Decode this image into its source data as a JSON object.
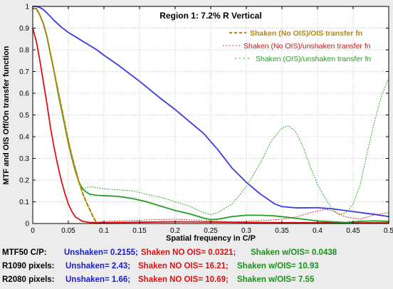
{
  "chart_data": {
    "type": "line",
    "title": "Region 1: 7.2% R Vertical",
    "xlabel": "Spatial frequency in C/P",
    "ylabel": "MTF and OIS Off/On transfer function",
    "xlim": [
      0,
      0.5
    ],
    "ylim": [
      0,
      1
    ],
    "x_ticks": [
      "0",
      "0.05",
      "0.1",
      "0.15",
      "0.2",
      "0.25",
      "0.3",
      "0.35",
      "0.4",
      "0.45",
      "0.5"
    ],
    "y_ticks": [
      "0",
      "0.1",
      "0.2",
      "0.3",
      "0.4",
      "0.5",
      "0.6",
      "0.7",
      "0.8",
      "0.9",
      "1"
    ],
    "grid": true,
    "legend_position": "top-right",
    "legend": [
      "Shaken (No OIS)/OIS transfer fn",
      "Shaken (No OIS)/unshaken transfer fn",
      "Shaken (OIS)/unshaken transfer fn"
    ],
    "series": [
      {
        "color": "#3a3ae6",
        "style": "solid",
        "width": 1.8,
        "points": [
          [
            0,
            1.0
          ],
          [
            0.005,
            1.0
          ],
          [
            0.01,
            0.995
          ],
          [
            0.015,
            0.985
          ],
          [
            0.02,
            0.97
          ],
          [
            0.03,
            0.935
          ],
          [
            0.04,
            0.905
          ],
          [
            0.05,
            0.88
          ],
          [
            0.06,
            0.86
          ],
          [
            0.07,
            0.84
          ],
          [
            0.08,
            0.82
          ],
          [
            0.09,
            0.8
          ],
          [
            0.1,
            0.775
          ],
          [
            0.12,
            0.73
          ],
          [
            0.15,
            0.655
          ],
          [
            0.18,
            0.575
          ],
          [
            0.2,
            0.525
          ],
          [
            0.22,
            0.47
          ],
          [
            0.24,
            0.415
          ],
          [
            0.26,
            0.34
          ],
          [
            0.28,
            0.255
          ],
          [
            0.3,
            0.19
          ],
          [
            0.32,
            0.135
          ],
          [
            0.34,
            0.09
          ],
          [
            0.35,
            0.078
          ],
          [
            0.37,
            0.072
          ],
          [
            0.4,
            0.073
          ],
          [
            0.42,
            0.068
          ],
          [
            0.45,
            0.055
          ],
          [
            0.48,
            0.042
          ],
          [
            0.5,
            0.032
          ]
        ]
      },
      {
        "color": "#e01010",
        "style": "solid",
        "width": 1.8,
        "points": [
          [
            0,
            0.9
          ],
          [
            0.005,
            0.84
          ],
          [
            0.01,
            0.75
          ],
          [
            0.015,
            0.65
          ],
          [
            0.02,
            0.55
          ],
          [
            0.025,
            0.44
          ],
          [
            0.03,
            0.35
          ],
          [
            0.035,
            0.27
          ],
          [
            0.04,
            0.2
          ],
          [
            0.045,
            0.14
          ],
          [
            0.05,
            0.09
          ],
          [
            0.055,
            0.055
          ],
          [
            0.06,
            0.03
          ],
          [
            0.07,
            0.01
          ],
          [
            0.08,
            0.005
          ],
          [
            0.1,
            0.004
          ],
          [
            0.15,
            0.006
          ],
          [
            0.2,
            0.008
          ],
          [
            0.25,
            0.007
          ],
          [
            0.3,
            0.005
          ],
          [
            0.35,
            0.004
          ],
          [
            0.4,
            0.004
          ],
          [
            0.45,
            0.003
          ],
          [
            0.5,
            0.003
          ]
        ]
      },
      {
        "color": "#20a020",
        "style": "solid",
        "width": 1.8,
        "points": [
          [
            0,
            0.99
          ],
          [
            0.005,
            0.99
          ],
          [
            0.01,
            0.96
          ],
          [
            0.015,
            0.92
          ],
          [
            0.02,
            0.86
          ],
          [
            0.025,
            0.78
          ],
          [
            0.03,
            0.7
          ],
          [
            0.035,
            0.61
          ],
          [
            0.04,
            0.53
          ],
          [
            0.045,
            0.45
          ],
          [
            0.05,
            0.37
          ],
          [
            0.055,
            0.3
          ],
          [
            0.06,
            0.24
          ],
          [
            0.065,
            0.19
          ],
          [
            0.07,
            0.16
          ],
          [
            0.075,
            0.145
          ],
          [
            0.08,
            0.135
          ],
          [
            0.09,
            0.13
          ],
          [
            0.1,
            0.128
          ],
          [
            0.12,
            0.125
          ],
          [
            0.14,
            0.115
          ],
          [
            0.16,
            0.1
          ],
          [
            0.18,
            0.08
          ],
          [
            0.2,
            0.06
          ],
          [
            0.22,
            0.045
          ],
          [
            0.24,
            0.025
          ],
          [
            0.25,
            0.018
          ],
          [
            0.26,
            0.02
          ],
          [
            0.28,
            0.032
          ],
          [
            0.3,
            0.038
          ],
          [
            0.32,
            0.038
          ],
          [
            0.34,
            0.035
          ],
          [
            0.36,
            0.028
          ],
          [
            0.38,
            0.02
          ],
          [
            0.4,
            0.012
          ],
          [
            0.42,
            0.008
          ],
          [
            0.44,
            0.005
          ],
          [
            0.46,
            0.01
          ],
          [
            0.48,
            0.012
          ],
          [
            0.5,
            0.01
          ]
        ]
      },
      {
        "color": "#b8860b",
        "style": "dash",
        "width": 2.2,
        "points": [
          [
            0,
            0.99
          ],
          [
            0.005,
            0.99
          ],
          [
            0.01,
            0.96
          ],
          [
            0.015,
            0.92
          ],
          [
            0.02,
            0.86
          ],
          [
            0.025,
            0.78
          ],
          [
            0.03,
            0.7
          ],
          [
            0.035,
            0.62
          ],
          [
            0.04,
            0.54
          ],
          [
            0.045,
            0.46
          ],
          [
            0.05,
            0.38
          ],
          [
            0.055,
            0.31
          ],
          [
            0.06,
            0.25
          ],
          [
            0.065,
            0.19
          ],
          [
            0.07,
            0.14
          ],
          [
            0.075,
            0.1
          ],
          [
            0.08,
            0.065
          ],
          [
            0.085,
            0.03
          ],
          [
            0.09,
            0.0
          ]
        ]
      },
      {
        "color": "#e01010",
        "style": "dot",
        "width": 1.0,
        "points": [
          [
            0.09,
            0.005
          ],
          [
            0.1,
            0.01
          ],
          [
            0.15,
            0.015
          ],
          [
            0.2,
            0.02
          ],
          [
            0.25,
            0.012
          ],
          [
            0.28,
            0.008
          ],
          [
            0.3,
            0.01
          ],
          [
            0.33,
            0.015
          ],
          [
            0.35,
            0.02
          ],
          [
            0.37,
            0.03
          ],
          [
            0.39,
            0.05
          ],
          [
            0.41,
            0.065
          ],
          [
            0.42,
            0.06
          ],
          [
            0.44,
            0.03
          ],
          [
            0.46,
            0.02
          ],
          [
            0.48,
            0.04
          ],
          [
            0.5,
            0.05
          ]
        ]
      },
      {
        "color": "#20a020",
        "style": "dot",
        "width": 1.0,
        "points": [
          [
            0.07,
            0.16
          ],
          [
            0.08,
            0.17
          ],
          [
            0.1,
            0.16
          ],
          [
            0.12,
            0.155
          ],
          [
            0.14,
            0.15
          ],
          [
            0.16,
            0.135
          ],
          [
            0.18,
            0.12
          ],
          [
            0.2,
            0.1
          ],
          [
            0.22,
            0.08
          ],
          [
            0.24,
            0.05
          ],
          [
            0.25,
            0.04
          ],
          [
            0.26,
            0.05
          ],
          [
            0.28,
            0.09
          ],
          [
            0.3,
            0.17
          ],
          [
            0.32,
            0.28
          ],
          [
            0.335,
            0.38
          ],
          [
            0.35,
            0.44
          ],
          [
            0.36,
            0.45
          ],
          [
            0.37,
            0.42
          ],
          [
            0.38,
            0.35
          ],
          [
            0.39,
            0.26
          ],
          [
            0.4,
            0.18
          ],
          [
            0.41,
            0.12
          ],
          [
            0.42,
            0.07
          ],
          [
            0.43,
            0.04
          ],
          [
            0.44,
            0.05
          ],
          [
            0.45,
            0.09
          ],
          [
            0.46,
            0.18
          ],
          [
            0.47,
            0.33
          ],
          [
            0.48,
            0.47
          ],
          [
            0.49,
            0.59
          ],
          [
            0.5,
            0.67
          ]
        ]
      }
    ]
  },
  "summary": {
    "rows": [
      {
        "label": "MTF50 C/P:",
        "unshaken": "Unshaken= 0.2155;",
        "noois": "Shaken NO OIS= 0.0321;",
        "ois": "Shaken w/OIS= 0.0438"
      },
      {
        "label": "R1090 pixels:",
        "unshaken": "Unshaken= 2.43;",
        "noois": "Shaken NO OIS= 16.21;",
        "ois": "Shaken w/OIS= 10.93"
      },
      {
        "label": "R2080 pixels:",
        "unshaken": "Unshaken= 1.66;",
        "noois": "Shaken NO OIS= 10.69;",
        "ois": "Shaken w/OIS= 7.55"
      }
    ]
  },
  "colors": {
    "unshaken": "#1a1ad0",
    "noois": "#e01010",
    "ois": "#18901a",
    "legend_gold": "#b8860b",
    "legend_red": "#d01010",
    "legend_green": "#20a020"
  }
}
